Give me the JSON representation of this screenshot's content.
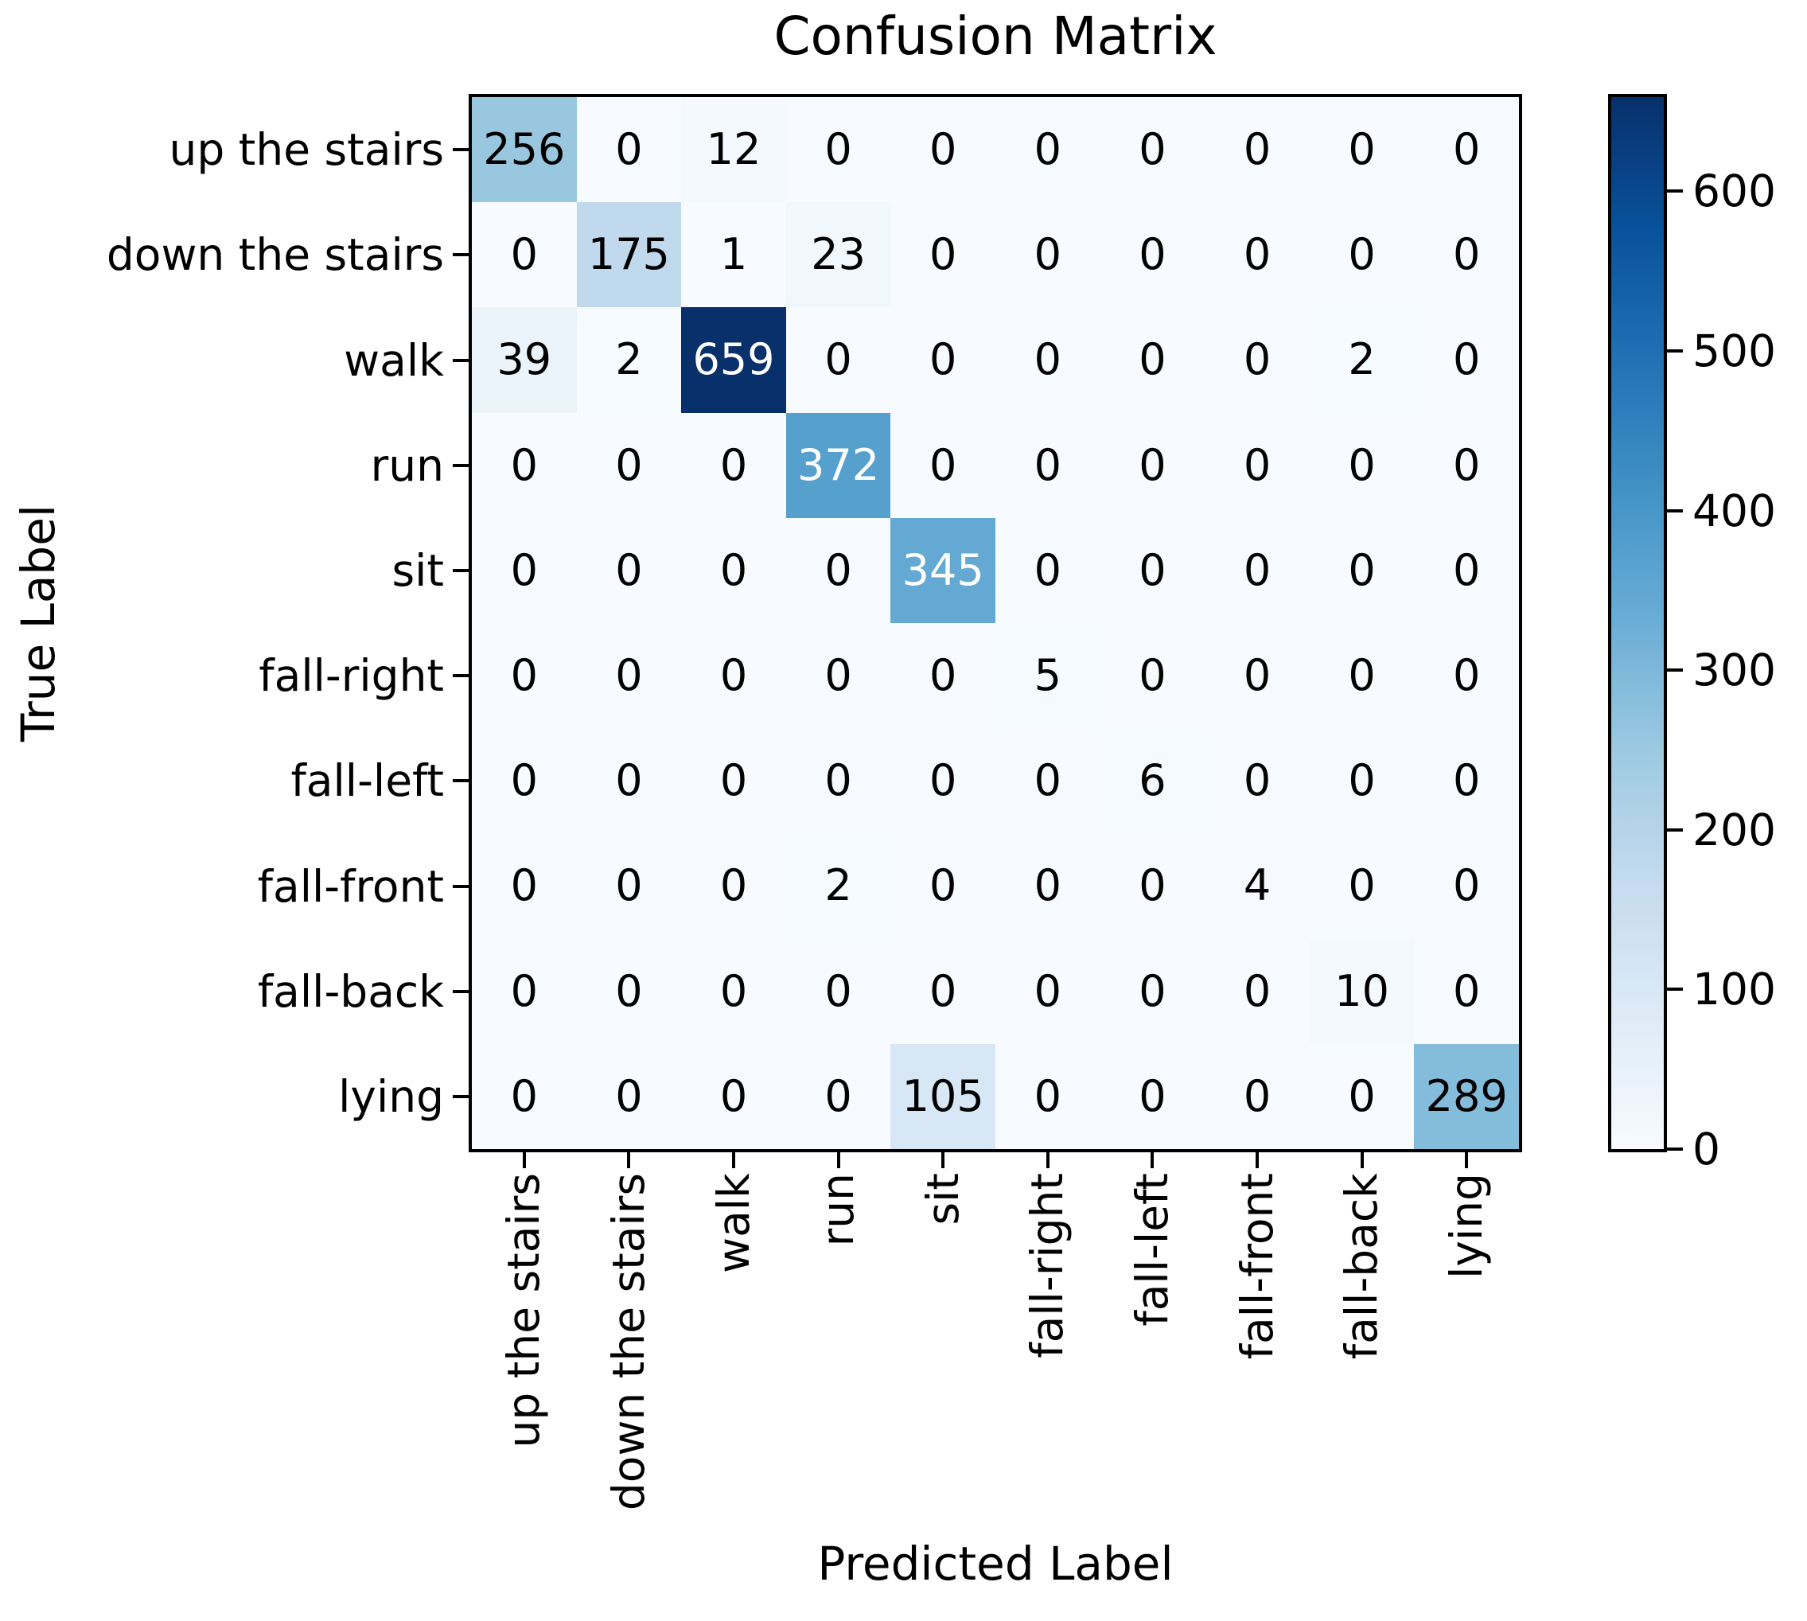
{
  "title": "Confusion Matrix",
  "axes": {
    "xlabel": "Predicted Label",
    "ylabel": "True Label"
  },
  "chart_data": {
    "type": "heatmap",
    "title": "Confusion Matrix",
    "xlabel": "Predicted Label",
    "ylabel": "True Label",
    "x_categories": [
      "up the stairs",
      "down the stairs",
      "walk",
      "run",
      "sit",
      "fall-right",
      "fall-left",
      "fall-front",
      "fall-back",
      "lying"
    ],
    "y_categories": [
      "up the stairs",
      "down the stairs",
      "walk",
      "run",
      "sit",
      "fall-right",
      "fall-left",
      "fall-front",
      "fall-back",
      "lying"
    ],
    "matrix": [
      [
        256,
        0,
        12,
        0,
        0,
        0,
        0,
        0,
        0,
        0
      ],
      [
        0,
        175,
        1,
        23,
        0,
        0,
        0,
        0,
        0,
        0
      ],
      [
        39,
        2,
        659,
        0,
        0,
        0,
        0,
        0,
        2,
        0
      ],
      [
        0,
        0,
        0,
        372,
        0,
        0,
        0,
        0,
        0,
        0
      ],
      [
        0,
        0,
        0,
        0,
        345,
        0,
        0,
        0,
        0,
        0
      ],
      [
        0,
        0,
        0,
        0,
        0,
        5,
        0,
        0,
        0,
        0
      ],
      [
        0,
        0,
        0,
        0,
        0,
        0,
        6,
        0,
        0,
        0
      ],
      [
        0,
        0,
        0,
        2,
        0,
        0,
        0,
        4,
        0,
        0
      ],
      [
        0,
        0,
        0,
        0,
        0,
        0,
        0,
        0,
        10,
        0
      ],
      [
        0,
        0,
        0,
        0,
        105,
        0,
        0,
        0,
        0,
        289
      ]
    ],
    "vmin": 0,
    "vmax": 659,
    "colormap": "Blues",
    "colormap_stops": [
      {
        "pos": 0.0,
        "color": "#f7fbff"
      },
      {
        "pos": 0.125,
        "color": "#deebf7"
      },
      {
        "pos": 0.25,
        "color": "#c6dbef"
      },
      {
        "pos": 0.375,
        "color": "#9ecae1"
      },
      {
        "pos": 0.5,
        "color": "#6baed6"
      },
      {
        "pos": 0.625,
        "color": "#4292c6"
      },
      {
        "pos": 0.75,
        "color": "#2171b5"
      },
      {
        "pos": 0.875,
        "color": "#08519c"
      },
      {
        "pos": 1.0,
        "color": "#08306b"
      }
    ],
    "cell_text_colors": {
      "light": "#ffffff",
      "dark": "#000000"
    },
    "colorbar_ticks": [
      0,
      100,
      200,
      300,
      400,
      500,
      600
    ],
    "legend_position": "right-colorbar",
    "grid": false
  }
}
